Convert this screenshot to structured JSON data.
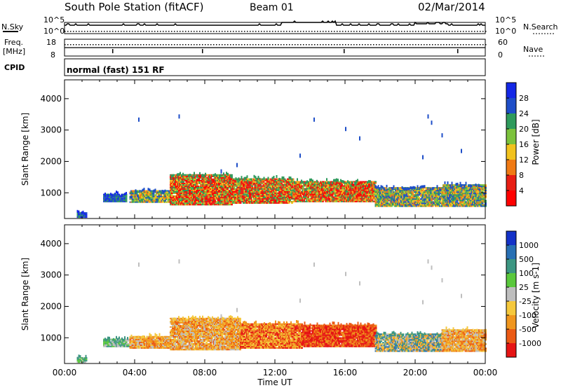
{
  "header": {
    "station": "South Pole Station (fitACF)",
    "beam": "Beam 01",
    "date": "02/Mar/2014"
  },
  "top_panels": {
    "nsky_label": "N.Sky",
    "nsearch_label": "N.Search",
    "noise_ticks_left": [
      "10^5",
      "10^0"
    ],
    "noise_ticks_right": [
      "10^5",
      "10^0"
    ],
    "freq_label_line1": "Freq.",
    "freq_label_line2": "[MHz]",
    "freq_ticks": [
      "18",
      "8"
    ],
    "nave_ticks": [
      "60",
      "0"
    ],
    "nave_label": "Nave",
    "cpid_label": "CPID",
    "cpid_text": "normal (fast) 151 RF"
  },
  "chart_data": [
    {
      "type": "heatmap",
      "title": "",
      "ylabel": "Slant Range [km]",
      "xlabel": "",
      "x_range_hours": [
        0,
        24
      ],
      "ylim": [
        180,
        4600
      ],
      "ytick_values": [
        1000,
        2000,
        3000,
        4000
      ],
      "ytick_labels": [
        "1000",
        "2000",
        "3000",
        "4000"
      ],
      "colorbar": {
        "label": "Power [dB]",
        "tick_labels": [
          "4",
          "8",
          "12",
          "16",
          "20",
          "24",
          "28"
        ],
        "colors": [
          "#1428e6",
          "#1e4ec8",
          "#2e9a5c",
          "#7cc23c",
          "#f2c21e",
          "#f07a14",
          "#e81e14",
          "#ff0000"
        ]
      },
      "echo_bands": [
        {
          "t_start": 0.7,
          "t_end": 1.2,
          "r_low": 200,
          "r_high": 350,
          "value": "low"
        },
        {
          "t_start": 2.2,
          "t_end": 3.5,
          "r_low": 700,
          "r_high": 950,
          "value": "low"
        },
        {
          "t_start": 3.7,
          "t_end": 6.0,
          "r_low": 680,
          "r_high": 1050,
          "value": "medium"
        },
        {
          "t_start": 6.0,
          "t_end": 9.5,
          "r_low": 600,
          "r_high": 1550,
          "value": "high"
        },
        {
          "t_start": 9.5,
          "t_end": 13.0,
          "r_low": 650,
          "r_high": 1450,
          "value": "high"
        },
        {
          "t_start": 13.0,
          "t_end": 17.7,
          "r_low": 700,
          "r_high": 1350,
          "value": "high"
        },
        {
          "t_start": 17.7,
          "t_end": 21.5,
          "r_low": 550,
          "r_high": 1150,
          "value": "medium"
        },
        {
          "t_start": 21.5,
          "t_end": 24.0,
          "r_low": 550,
          "r_high": 1250,
          "value": "medium"
        }
      ]
    },
    {
      "type": "heatmap",
      "title": "",
      "ylabel": "Slant Range [km]",
      "xlabel": "Time UT",
      "x_range_hours": [
        0,
        24
      ],
      "xtick_labels": [
        "00:00",
        "04:00",
        "08:00",
        "12:00",
        "16:00",
        "20:00",
        "00:00"
      ],
      "ylim": [
        180,
        4600
      ],
      "ytick_values": [
        1000,
        2000,
        3000,
        4000
      ],
      "ytick_labels": [
        "1000",
        "2000",
        "3000",
        "4000"
      ],
      "colorbar": {
        "label": "Velocity [m s-1]",
        "tick_labels": [
          "1000",
          "500",
          "100",
          "25",
          "-25",
          "-100",
          "-500",
          "-1000"
        ],
        "colors": [
          "#1432c8",
          "#2870b4",
          "#3c9682",
          "#5ac83c",
          "#bebebe",
          "#f5c83c",
          "#f0961e",
          "#eb5a14",
          "#e61414"
        ]
      },
      "echo_bands": [
        {
          "t_start": 0.7,
          "t_end": 1.2,
          "r_low": 200,
          "r_high": 350,
          "value": "green"
        },
        {
          "t_start": 2.2,
          "t_end": 3.6,
          "r_low": 700,
          "r_high": 950,
          "value": "green"
        },
        {
          "t_start": 3.7,
          "t_end": 6.0,
          "r_low": 650,
          "r_high": 1050,
          "value": "orange"
        },
        {
          "t_start": 6.0,
          "t_end": 10.0,
          "r_low": 600,
          "r_high": 1600,
          "value": "orange"
        },
        {
          "t_start": 10.0,
          "t_end": 13.5,
          "r_low": 650,
          "r_high": 1450,
          "value": "red-orange"
        },
        {
          "t_start": 13.5,
          "t_end": 17.7,
          "r_low": 700,
          "r_high": 1400,
          "value": "red"
        },
        {
          "t_start": 17.7,
          "t_end": 21.5,
          "r_low": 550,
          "r_high": 1100,
          "value": "mixed"
        },
        {
          "t_start": 21.5,
          "t_end": 24.0,
          "r_low": 550,
          "r_high": 1250,
          "value": "orange"
        }
      ]
    }
  ]
}
